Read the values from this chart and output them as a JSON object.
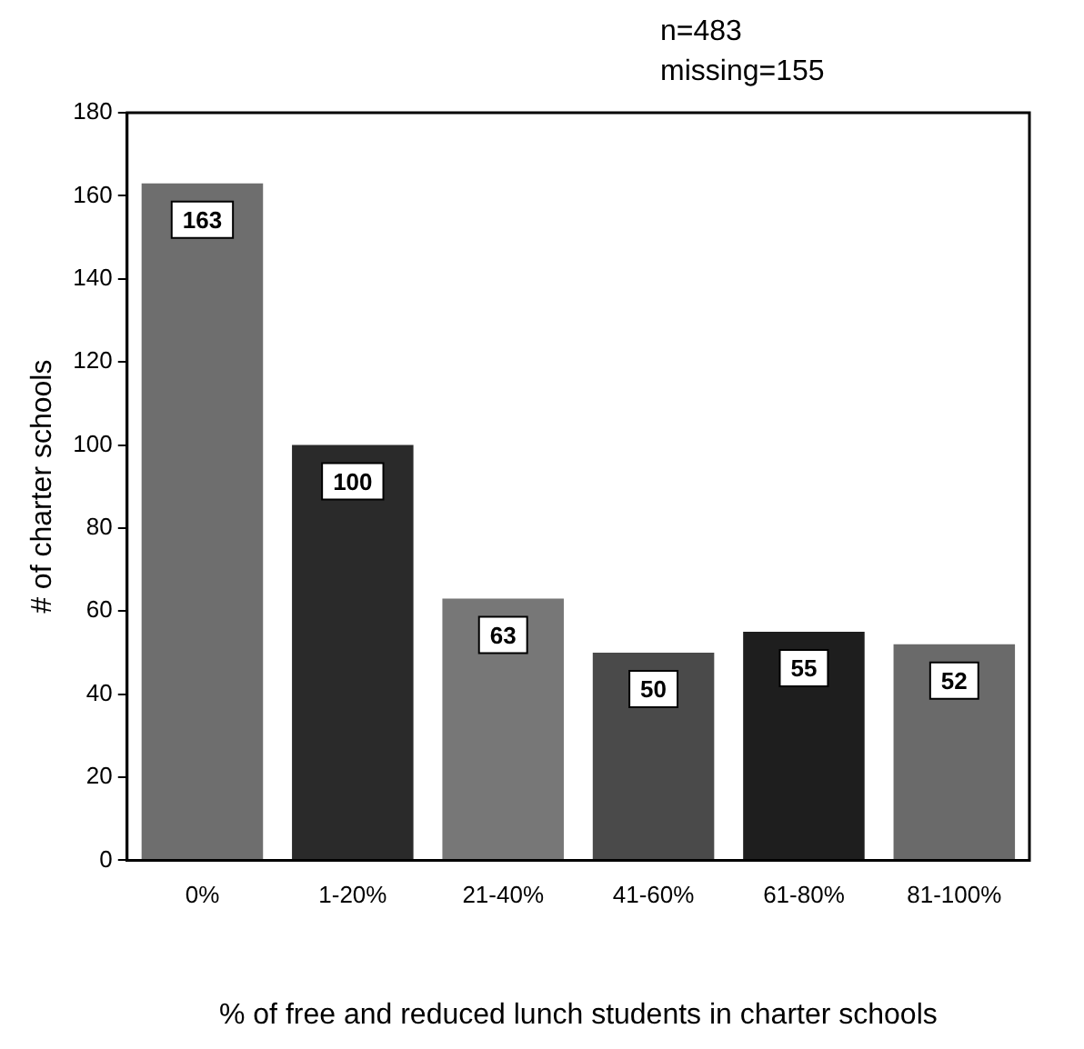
{
  "chart_data": {
    "type": "bar",
    "title": "n=483",
    "subtitle": "missing=155",
    "xlabel": "% of free and reduced lunch students in charter schools",
    "ylabel": "# of charter schools",
    "categories": [
      "0%",
      "1-20%",
      "21-40%",
      "41-60%",
      "61-80%",
      "81-100%"
    ],
    "values": [
      163,
      100,
      63,
      50,
      55,
      52
    ],
    "colors": [
      "#6e6e6e",
      "#2a2a2a",
      "#777777",
      "#4a4a4a",
      "#1e1e1e",
      "#6a6a6a"
    ],
    "ylim": [
      0,
      180
    ],
    "yticks": [
      0,
      20,
      40,
      60,
      80,
      100,
      120,
      140,
      160,
      180
    ],
    "grid": false,
    "legend": false,
    "data_labels": true
  }
}
